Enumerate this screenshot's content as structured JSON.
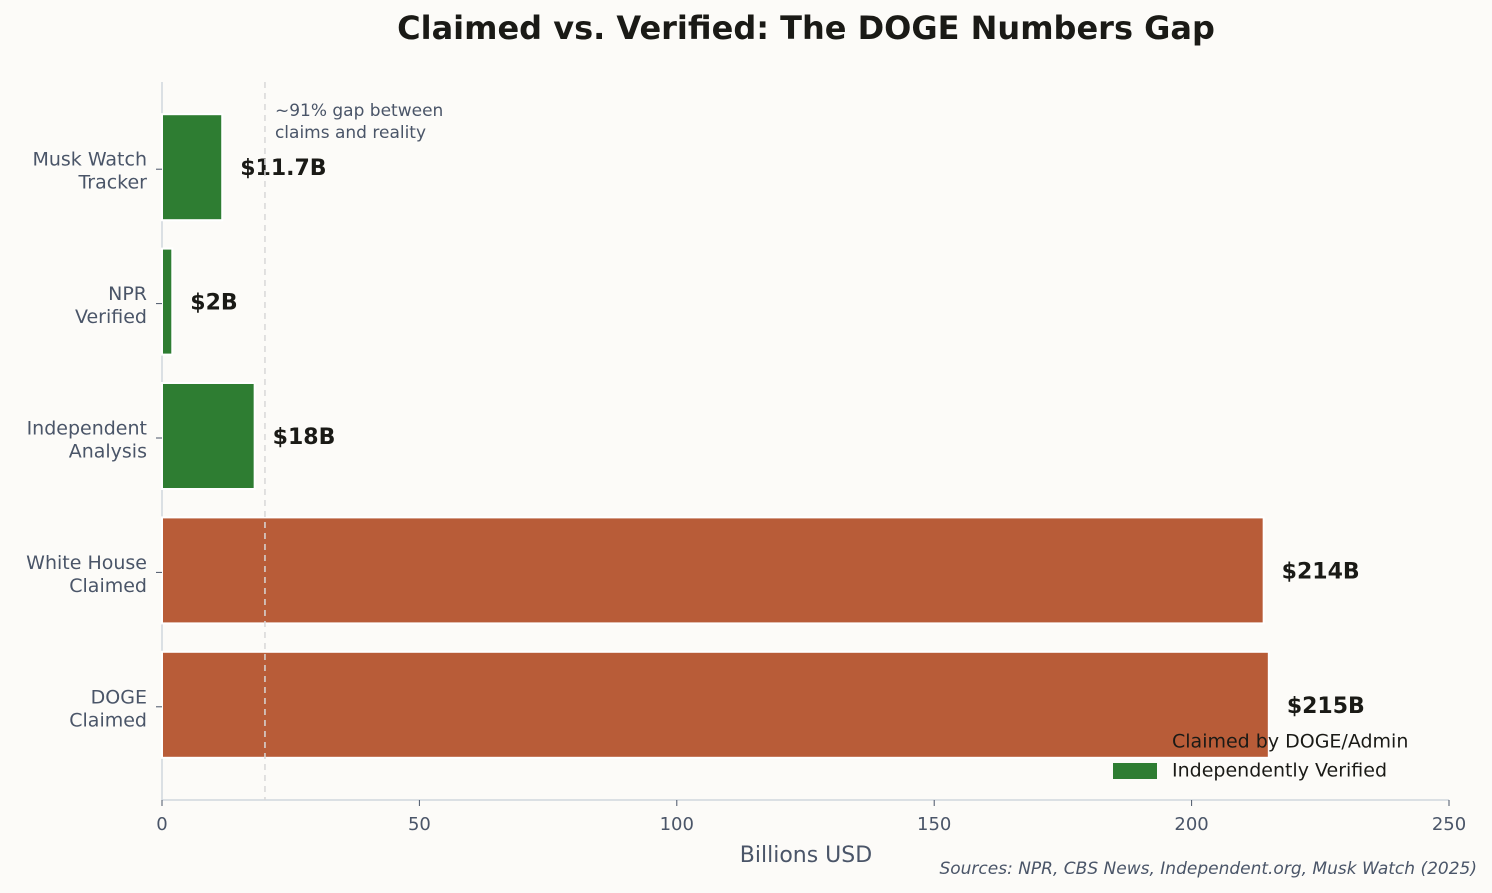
{
  "chart_data": {
    "type": "barh",
    "title": "Claimed vs. Verified: The DOGE Numbers Gap",
    "categories": [
      "Musk Watch\nTracker",
      "NPR\nVerified",
      "Independent\nAnalysis",
      "White House\nClaimed",
      "DOGE\nClaimed"
    ],
    "values": [
      11.7,
      2,
      18,
      214,
      215
    ],
    "value_labels": [
      "$11.7B",
      "$2B",
      "$18B",
      "$214B",
      "$215B"
    ],
    "colors": [
      "#2e7d32",
      "#2e7d32",
      "#2e7d32",
      "#b85c38",
      "#b85c38"
    ],
    "legend": [
      {
        "name": "Claimed by DOGE/Admin",
        "color": "#b85c38"
      },
      {
        "name": "Independently Verified",
        "color": "#2e7d32"
      }
    ],
    "legend_position": "lower right",
    "xlabel": "Billions USD",
    "xlim": [
      0,
      250
    ],
    "xticks": [
      0,
      50,
      100,
      150,
      200,
      250
    ],
    "reference_line": 20,
    "annotation": "~91% gap between\nclaims and reality",
    "source": "Sources: NPR, CBS News, Independent.org, Musk Watch (2025)"
  }
}
